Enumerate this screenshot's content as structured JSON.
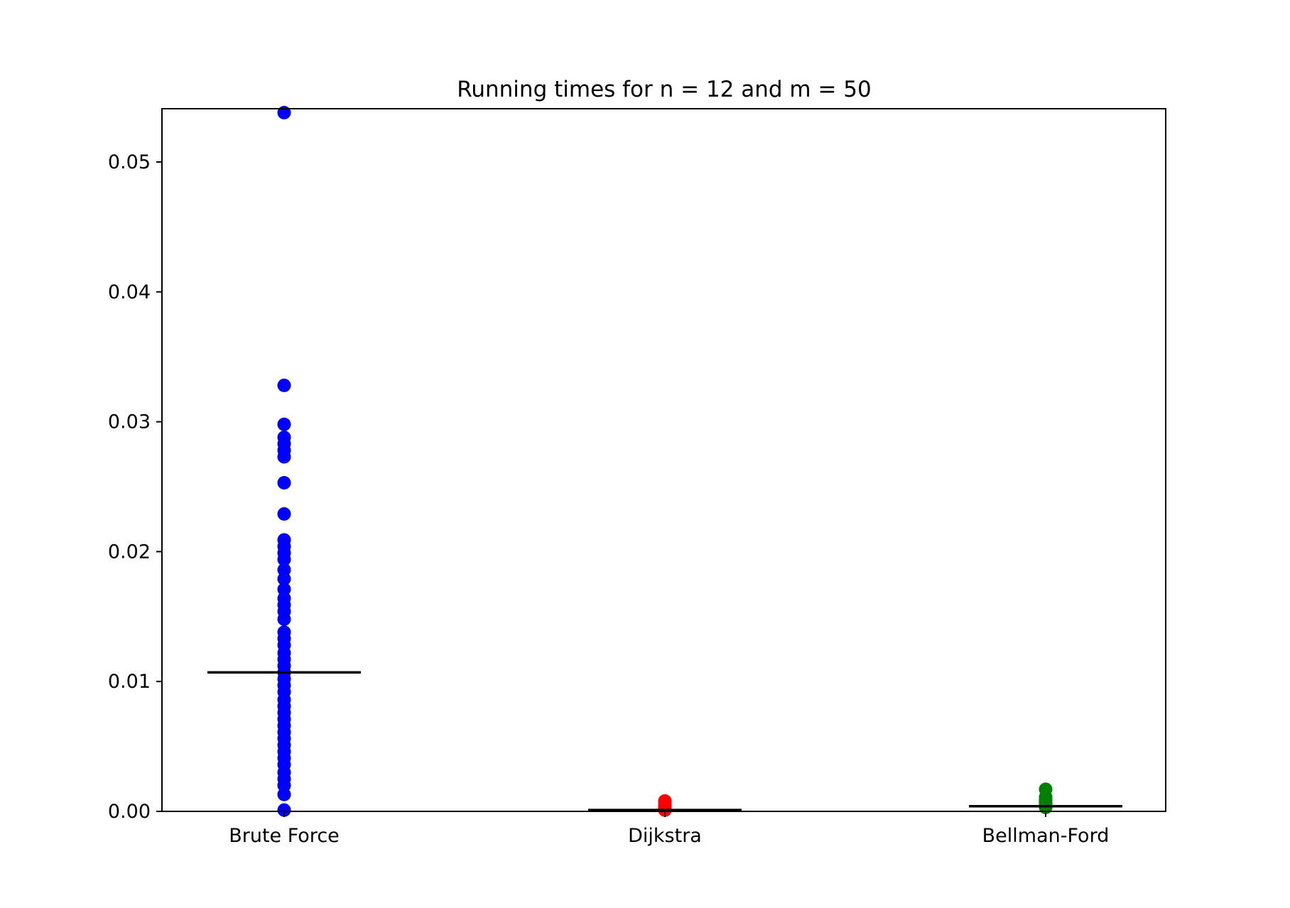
{
  "chart_data": {
    "type": "scatter",
    "title": "Running times for n = 12 and m = 50",
    "xlabel": "",
    "ylabel": "",
    "categories": [
      "Brute Force",
      "Dijkstra",
      "Bellman-Ford"
    ],
    "ylim": [
      0.0,
      0.054
    ],
    "yticks": [
      "0.00",
      "0.01",
      "0.02",
      "0.03",
      "0.04",
      "0.05"
    ],
    "ytick_values": [
      0.0,
      0.01,
      0.02,
      0.03,
      0.04,
      0.05
    ],
    "grid": false,
    "legend": "none",
    "series": [
      {
        "category": "Brute Force",
        "color": "#0000ff",
        "median": 0.0107,
        "values": [
          0.0538,
          0.0328,
          0.0298,
          0.0288,
          0.0283,
          0.0278,
          0.0273,
          0.0253,
          0.0229,
          0.0209,
          0.0204,
          0.0199,
          0.0194,
          0.0186,
          0.0179,
          0.0171,
          0.0164,
          0.0159,
          0.0154,
          0.0148,
          0.0138,
          0.0133,
          0.0128,
          0.0122,
          0.0117,
          0.0112,
          0.0107,
          0.0102,
          0.0097,
          0.0092,
          0.0086,
          0.0081,
          0.0076,
          0.0071,
          0.0066,
          0.0061,
          0.0056,
          0.0051,
          0.0046,
          0.0041,
          0.0036,
          0.003,
          0.0025,
          0.002,
          0.0013,
          0.0001
        ]
      },
      {
        "category": "Dijkstra",
        "color": "#ff0000",
        "median": 0.0001,
        "values": [
          0.0008,
          0.0006,
          0.0005,
          0.0004,
          0.0003,
          0.0002,
          0.0001
        ]
      },
      {
        "category": "Bellman-Ford",
        "color": "#008000",
        "median": 0.0004,
        "values": [
          0.0017,
          0.0011,
          0.0009,
          0.0008,
          0.0007,
          0.0006,
          0.0005,
          0.0004,
          0.0003
        ]
      }
    ]
  }
}
